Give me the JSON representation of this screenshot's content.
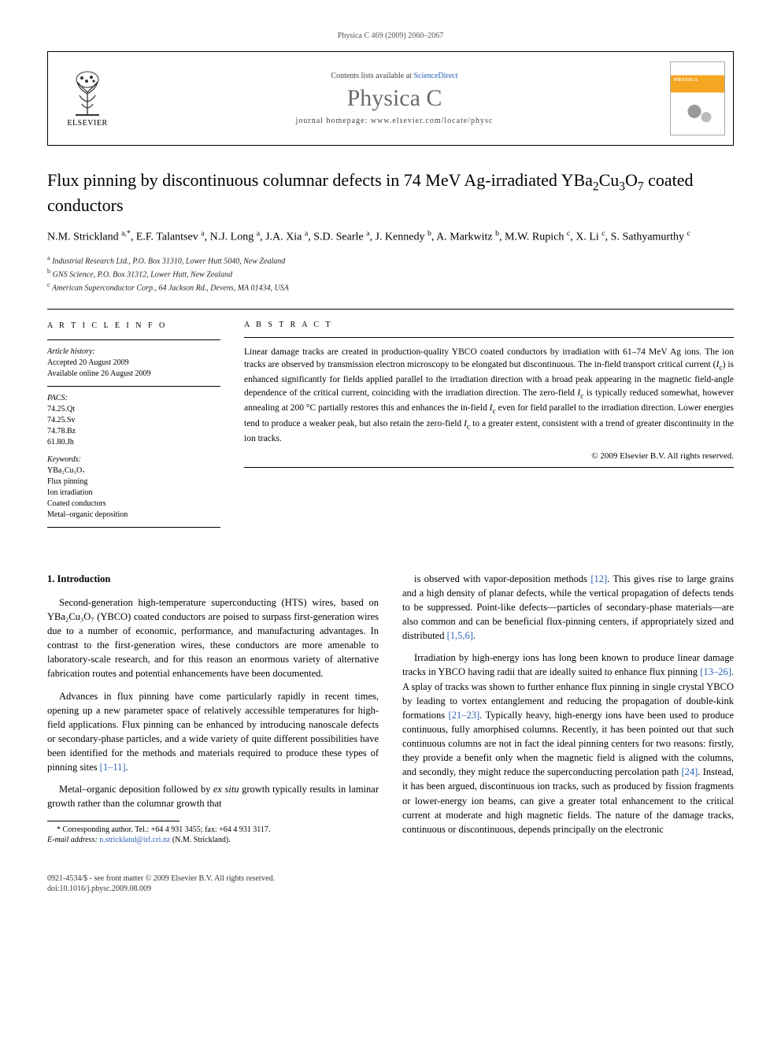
{
  "running_head": "Physica C 469 (2009) 2060–2067",
  "masthead": {
    "elsevier": "ELSEVIER",
    "contents_prefix": "Contents lists available at ",
    "contents_link": "ScienceDirect",
    "journal": "Physica C",
    "homepage": "journal homepage: www.elsevier.com/locate/physc",
    "cover_label": "PHYSICA"
  },
  "title_html": "Flux pinning by discontinuous columnar defects in 74 MeV Ag-irradiated YBa<sub>2</sub>Cu<sub>3</sub>O<sub>7</sub> coated conductors",
  "authors_html": "N.M. Strickland <sup>a,*</sup>, E.F. Talantsev <sup>a</sup>, N.J. Long <sup>a</sup>, J.A. Xia <sup>a</sup>, S.D. Searle <sup>a</sup>, J. Kennedy <sup>b</sup>, A. Markwitz <sup>b</sup>, M.W. Rupich <sup>c</sup>, X. Li <sup>c</sup>, S. Sathyamurthy <sup>c</sup>",
  "affiliations": [
    {
      "sup": "a",
      "text": "Industrial Research Ltd., P.O. Box 31310, Lower Hutt 5040, New Zealand"
    },
    {
      "sup": "b",
      "text": "GNS Science, P.O. Box 31312, Lower Hutt, New Zealand"
    },
    {
      "sup": "c",
      "text": "American Superconductor Corp., 64 Jackson Rd., Devens, MA 01434, USA"
    }
  ],
  "info": {
    "heading": "A R T I C L E   I N F O",
    "history_label": "Article history:",
    "history_lines": [
      "Accepted 20 August 2009",
      "Available online 26 August 2009"
    ],
    "pacs_label": "PACS:",
    "pacs": [
      "74.25.Qt",
      "74.25.Sv",
      "74.78.Bz",
      "61.80.Jh"
    ],
    "keywords_label": "Keywords:",
    "keywords": [
      "YBa₂Cu₃O₇",
      "Flux pinning",
      "Ion irradiation",
      "Coated conductors",
      "Metal–organic deposition"
    ]
  },
  "abstract": {
    "heading": "A B S T R A C T",
    "text_html": "Linear damage tracks are created in production-quality YBCO coated conductors by irradiation with 61–74 MeV Ag ions. The ion tracks are observed by transmission electron microscopy to be elongated but discontinuous. The in-field transport critical current (<em>I</em><sub>c</sub>) is enhanced significantly for fields applied parallel to the irradiation direction with a broad peak appearing in the magnetic field-angle dependence of the critical current, coinciding with the irradiation direction. The zero-field <em>I</em><sub>c</sub> is typically reduced somewhat, however annealing at 200 °C partially restores this and enhances the in-field <em>I</em><sub>c</sub> even for field parallel to the irradiation direction. Lower energies tend to produce a weaker peak, but also retain the zero-field <em>I</em><sub>c</sub> to a greater extent, consistent with a trend of greater discontinuity in the ion tracks.",
    "copyright": "© 2009 Elsevier B.V. All rights reserved."
  },
  "section1": {
    "heading": "1. Introduction",
    "p1": "Second-generation high-temperature superconducting (HTS) wires, based on YBa₂Cu₃O₇ (YBCO) coated conductors are poised to surpass first-generation wires due to a number of economic, performance, and manufacturing advantages. In contrast to the first-generation wires, these conductors are more amenable to laboratory-scale research, and for this reason an enormous variety of alternative fabrication routes and potential enhancements have been documented.",
    "p2_html": "Advances in flux pinning have come particularly rapidly in recent times, opening up a new parameter space of relatively accessible temperatures for high-field applications. Flux pinning can be enhanced by introducing nanoscale defects or secondary-phase particles, and a wide variety of quite different possibilities have been identified for the methods and materials required to produce these types of pinning sites <span class=\"ref\">[1–11]</span>.",
    "p3_html": "Metal–organic deposition followed by <em>ex situ</em> growth typically results in laminar growth rather than the columnar growth that",
    "p4_html": "is observed with vapor-deposition methods <span class=\"ref\">[12]</span>. This gives rise to large grains and a high density of planar defects, while the vertical propagation of defects tends to be suppressed. Point-like defects—particles of secondary-phase materials—are also common and can be beneficial flux-pinning centers, if appropriately sized and distributed <span class=\"ref\">[1,5,6]</span>.",
    "p5_html": "Irradiation by high-energy ions has long been known to produce linear damage tracks in YBCO having radii that are ideally suited to enhance flux pinning <span class=\"ref\">[13–26]</span>. A splay of tracks was shown to further enhance flux pinning in single crystal YBCO by leading to vortex entanglement and reducing the propagation of double-kink formations <span class=\"ref\">[21–23]</span>. Typically heavy, high-energy ions have been used to produce continuous, fully amorphised columns. Recently, it has been pointed out that such continuous columns are not in fact the ideal pinning centers for two reasons: firstly, they provide a benefit only when the magnetic field is aligned with the columns, and secondly, they might reduce the superconducting percolation path <span class=\"ref\">[24]</span>. Instead, it has been argued, discontinuous ion tracks, such as produced by fission fragments or lower-energy ion beams, can give a greater total enhancement to the critical current at moderate and high magnetic fields. The nature of the damage tracks, continuous or discontinuous, depends principally on the electronic"
  },
  "footnote": {
    "line1": "* Corresponding author. Tel.: +64 4 931 3455; fax: +64 4 931 3117.",
    "email_label": "E-mail address:",
    "email": "n.strickland@irl.cri.nz",
    "email_suffix": "(N.M. Strickland)."
  },
  "footer": {
    "line1": "0921-4534/$ - see front matter © 2009 Elsevier B.V. All rights reserved.",
    "line2": "doi:10.1016/j.physc.2009.08.009"
  }
}
